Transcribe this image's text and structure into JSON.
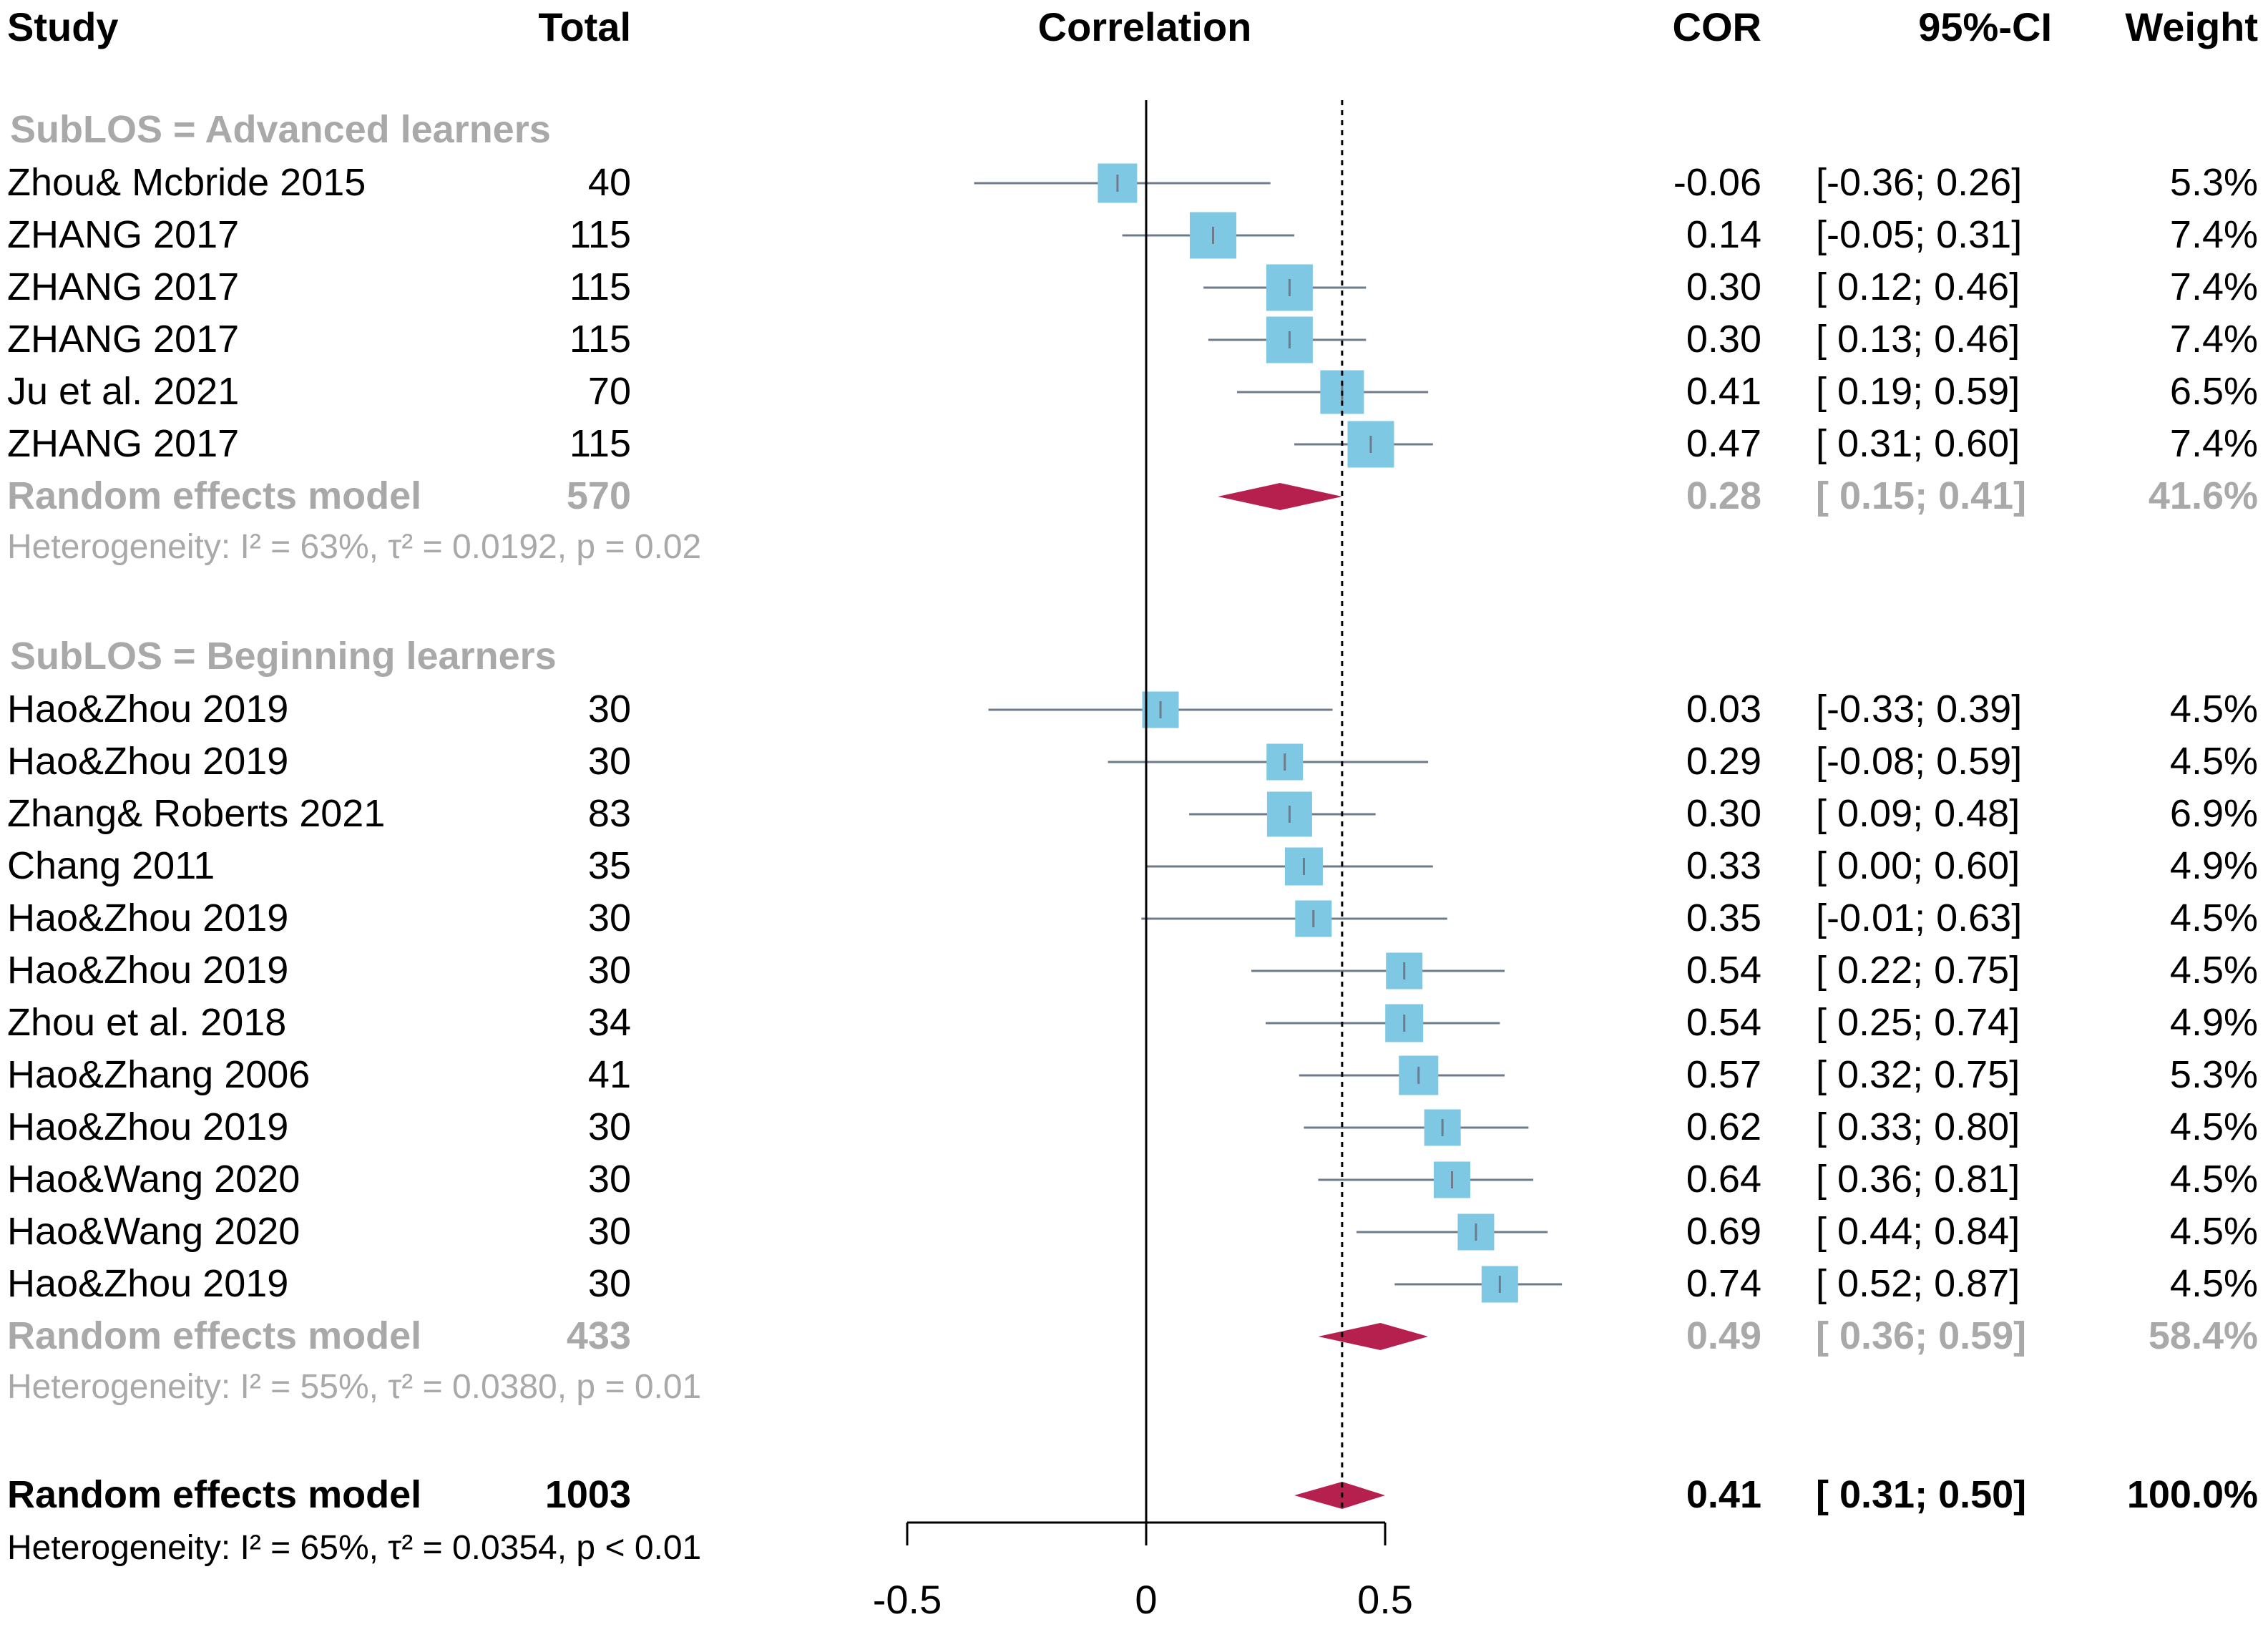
{
  "headers": {
    "study": "Study",
    "total": "Total",
    "correlation": "Correlation",
    "cor": "COR",
    "ci": "95%-CI",
    "weight": "Weight"
  },
  "groups": [
    {
      "label": "SubLOS = Advanced learners",
      "studies": [
        {
          "name": "Zhou& Mcbride  2015",
          "total": "40",
          "cor_text": "-0.06",
          "ci_text": "[-0.36; 0.26]",
          "weight_text": "5.3%",
          "cor": -0.06,
          "lower": -0.36,
          "upper": 0.26,
          "weight": 5.3
        },
        {
          "name": "ZHANG  2017",
          "total": "115",
          "cor_text": "0.14",
          "ci_text": "[-0.05; 0.31]",
          "weight_text": "7.4%",
          "cor": 0.14,
          "lower": -0.05,
          "upper": 0.31,
          "weight": 7.4
        },
        {
          "name": "ZHANG  2017",
          "total": "115",
          "cor_text": "0.30",
          "ci_text": "[ 0.12; 0.46]",
          "weight_text": "7.4%",
          "cor": 0.3,
          "lower": 0.12,
          "upper": 0.46,
          "weight": 7.4
        },
        {
          "name": "ZHANG  2017",
          "total": "115",
          "cor_text": "0.30",
          "ci_text": "[ 0.13; 0.46]",
          "weight_text": "7.4%",
          "cor": 0.3,
          "lower": 0.13,
          "upper": 0.46,
          "weight": 7.4
        },
        {
          "name": "Ju et al.  2021",
          "total": "70",
          "cor_text": "0.41",
          "ci_text": "[ 0.19; 0.59]",
          "weight_text": "6.5%",
          "cor": 0.41,
          "lower": 0.19,
          "upper": 0.59,
          "weight": 6.5
        },
        {
          "name": "ZHANG  2017",
          "total": "115",
          "cor_text": "0.47",
          "ci_text": "[ 0.31; 0.60]",
          "weight_text": "7.4%",
          "cor": 0.47,
          "lower": 0.31,
          "upper": 0.6,
          "weight": 7.4
        }
      ],
      "summary": {
        "label": "Random effects model",
        "total": "570",
        "cor_text": "0.28",
        "ci_text": "[ 0.15; 0.41]",
        "weight_text": "41.6%",
        "cor": 0.28,
        "lower": 0.15,
        "upper": 0.41
      },
      "heterogeneity": "Heterogeneity: I² = 63%, τ² = 0.0192, p = 0.02"
    },
    {
      "label": "SubLOS = Beginning learners",
      "studies": [
        {
          "name": "Hao&Zhou  2019",
          "total": "30",
          "cor_text": "0.03",
          "ci_text": "[-0.33; 0.39]",
          "weight_text": "4.5%",
          "cor": 0.03,
          "lower": -0.33,
          "upper": 0.39,
          "weight": 4.5
        },
        {
          "name": "Hao&Zhou  2019",
          "total": "30",
          "cor_text": "0.29",
          "ci_text": "[-0.08; 0.59]",
          "weight_text": "4.5%",
          "cor": 0.29,
          "lower": -0.08,
          "upper": 0.59,
          "weight": 4.5
        },
        {
          "name": "Zhang& Roberts  2021",
          "total": "83",
          "cor_text": "0.30",
          "ci_text": "[ 0.09; 0.48]",
          "weight_text": "6.9%",
          "cor": 0.3,
          "lower": 0.09,
          "upper": 0.48,
          "weight": 6.9
        },
        {
          "name": "Chang  2011",
          "total": "35",
          "cor_text": "0.33",
          "ci_text": "[ 0.00; 0.60]",
          "weight_text": "4.9%",
          "cor": 0.33,
          "lower": 0.0,
          "upper": 0.6,
          "weight": 4.9
        },
        {
          "name": "Hao&Zhou  2019",
          "total": "30",
          "cor_text": "0.35",
          "ci_text": "[-0.01; 0.63]",
          "weight_text": "4.5%",
          "cor": 0.35,
          "lower": -0.01,
          "upper": 0.63,
          "weight": 4.5
        },
        {
          "name": "Hao&Zhou  2019",
          "total": "30",
          "cor_text": "0.54",
          "ci_text": "[ 0.22; 0.75]",
          "weight_text": "4.5%",
          "cor": 0.54,
          "lower": 0.22,
          "upper": 0.75,
          "weight": 4.5
        },
        {
          "name": "Zhou et al.  2018",
          "total": "34",
          "cor_text": "0.54",
          "ci_text": "[ 0.25; 0.74]",
          "weight_text": "4.9%",
          "cor": 0.54,
          "lower": 0.25,
          "upper": 0.74,
          "weight": 4.9
        },
        {
          "name": "Hao&Zhang  2006",
          "total": "41",
          "cor_text": "0.57",
          "ci_text": "[ 0.32; 0.75]",
          "weight_text": "5.3%",
          "cor": 0.57,
          "lower": 0.32,
          "upper": 0.75,
          "weight": 5.3
        },
        {
          "name": "Hao&Zhou  2019",
          "total": "30",
          "cor_text": "0.62",
          "ci_text": "[ 0.33; 0.80]",
          "weight_text": "4.5%",
          "cor": 0.62,
          "lower": 0.33,
          "upper": 0.8,
          "weight": 4.5
        },
        {
          "name": "Hao&Wang  2020",
          "total": "30",
          "cor_text": "0.64",
          "ci_text": "[ 0.36; 0.81]",
          "weight_text": "4.5%",
          "cor": 0.64,
          "lower": 0.36,
          "upper": 0.81,
          "weight": 4.5
        },
        {
          "name": "Hao&Wang  2020",
          "total": "30",
          "cor_text": "0.69",
          "ci_text": "[ 0.44; 0.84]",
          "weight_text": "4.5%",
          "cor": 0.69,
          "lower": 0.44,
          "upper": 0.84,
          "weight": 4.5
        },
        {
          "name": "Hao&Zhou  2019",
          "total": "30",
          "cor_text": "0.74",
          "ci_text": "[ 0.52; 0.87]",
          "weight_text": "4.5%",
          "cor": 0.74,
          "lower": 0.52,
          "upper": 0.87,
          "weight": 4.5
        }
      ],
      "summary": {
        "label": "Random effects model",
        "total": "433",
        "cor_text": "0.49",
        "ci_text": "[ 0.36; 0.59]",
        "weight_text": "58.4%",
        "cor": 0.49,
        "lower": 0.36,
        "upper": 0.59
      },
      "heterogeneity": "Heterogeneity: I² = 55%, τ² = 0.0380, p = 0.01"
    }
  ],
  "overall": {
    "label": "Random effects model",
    "total": "1003",
    "cor_text": "0.41",
    "ci_text": "[ 0.31; 0.50]",
    "weight_text": "100.0%",
    "cor": 0.41,
    "lower": 0.31,
    "upper": 0.5
  },
  "overall_heterogeneity": "Heterogeneity: I² = 65%, τ² = 0.0354, p < 0.01",
  "colors": {
    "square": "#7ec8e3",
    "diamond": "#b5204f",
    "grey_text": "#a9a9a9",
    "ci_line": "#6e7b8b"
  },
  "chart_data": {
    "type": "forest",
    "title": "Correlation",
    "xlabel": "",
    "ylabel": "",
    "xlim": [
      -0.5,
      0.5
    ],
    "ticks": [
      -0.5,
      0,
      0.5
    ],
    "tick_labels": [
      "-0.5",
      "0",
      "0.5"
    ],
    "null_line": 0,
    "reference_line": 0.41,
    "series": [
      {
        "name": "Advanced learners",
        "values": [
          -0.06,
          0.14,
          0.3,
          0.3,
          0.41,
          0.47
        ],
        "summary": 0.28
      },
      {
        "name": "Beginning learners",
        "values": [
          0.03,
          0.29,
          0.3,
          0.33,
          0.35,
          0.54,
          0.54,
          0.57,
          0.62,
          0.64,
          0.69,
          0.74
        ],
        "summary": 0.49
      }
    ],
    "overall": 0.41
  }
}
